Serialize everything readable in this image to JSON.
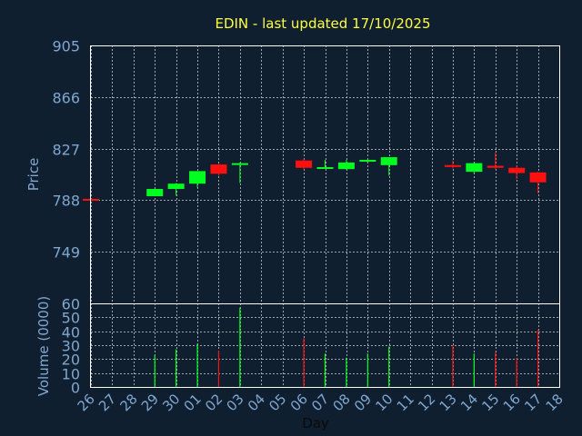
{
  "colors": {
    "background": "#0f1f30",
    "title": "#ffff40",
    "axis_text": "#7fa7d0",
    "xlabel": "#0a0a0a",
    "grid": "#c8c8c8",
    "frame": "#ffffff",
    "up": "#00ff1e",
    "down": "#ff1010"
  },
  "chart_data": {
    "type": "candlestick",
    "title": "EDIN - last updated 17/10/2025",
    "xlabel": "Day",
    "grid": true,
    "x_ticks": [
      "26",
      "27",
      "28",
      "29",
      "30",
      "01",
      "02",
      "03",
      "04",
      "05",
      "06",
      "07",
      "08",
      "09",
      "10",
      "11",
      "12",
      "13",
      "14",
      "15",
      "16",
      "17",
      "18"
    ],
    "price_panel": {
      "ylabel": "Price",
      "ylim": [
        710,
        905
      ],
      "y_ticks": [
        905,
        866,
        827,
        788,
        749
      ],
      "candles": [
        {
          "x": "26",
          "open": 789.0,
          "close": 788.0,
          "high": 789.5,
          "low": 787.5
        },
        {
          "x": "29",
          "open": 791.0,
          "close": 796.5,
          "high": 797.0,
          "low": 791.0
        },
        {
          "x": "30",
          "open": 796.5,
          "close": 800.5,
          "high": 801.0,
          "low": 791.5
        },
        {
          "x": "01",
          "open": 800.5,
          "close": 810.0,
          "high": 810.0,
          "low": 797.5
        },
        {
          "x": "02",
          "open": 815.0,
          "close": 808.0,
          "high": 815.5,
          "low": 806.5
        },
        {
          "x": "03",
          "open": 815.0,
          "close": 816.0,
          "high": 816.5,
          "low": 801.0
        },
        {
          "x": "06",
          "open": 818.0,
          "close": 812.5,
          "high": 819.0,
          "low": 811.5
        },
        {
          "x": "07",
          "open": 812.5,
          "close": 813.0,
          "high": 818.5,
          "low": 812.0
        },
        {
          "x": "08",
          "open": 811.5,
          "close": 816.5,
          "high": 818.5,
          "low": 811.0
        },
        {
          "x": "09",
          "open": 817.5,
          "close": 818.5,
          "high": 819.0,
          "low": 816.5
        },
        {
          "x": "10",
          "open": 814.5,
          "close": 820.5,
          "high": 820.5,
          "low": 806.5
        },
        {
          "x": "13",
          "open": 814.5,
          "close": 813.5,
          "high": 818.0,
          "low": 812.0
        },
        {
          "x": "14",
          "open": 809.5,
          "close": 816.0,
          "high": 816.5,
          "low": 808.0
        },
        {
          "x": "15",
          "open": 814.0,
          "close": 812.5,
          "high": 824.0,
          "low": 811.5
        },
        {
          "x": "16",
          "open": 812.5,
          "close": 808.5,
          "high": 814.5,
          "low": 804.0
        },
        {
          "x": "17",
          "open": 809.0,
          "close": 801.5,
          "high": 809.5,
          "low": 793.0
        }
      ]
    },
    "volume_panel": {
      "ylabel": "Volume (0000)",
      "ylim": [
        0,
        60
      ],
      "y_ticks": [
        0,
        10,
        20,
        30,
        40,
        50,
        60
      ],
      "bars": [
        {
          "x": "26",
          "value": 1,
          "direction": "down"
        },
        {
          "x": "29",
          "value": 23,
          "direction": "up"
        },
        {
          "x": "30",
          "value": 27,
          "direction": "up"
        },
        {
          "x": "01",
          "value": 31,
          "direction": "up"
        },
        {
          "x": "02",
          "value": 26,
          "direction": "down"
        },
        {
          "x": "03",
          "value": 57,
          "direction": "up"
        },
        {
          "x": "06",
          "value": 35,
          "direction": "down"
        },
        {
          "x": "07",
          "value": 24,
          "direction": "up"
        },
        {
          "x": "08",
          "value": 21,
          "direction": "up"
        },
        {
          "x": "09",
          "value": 24,
          "direction": "up"
        },
        {
          "x": "10",
          "value": 29,
          "direction": "up"
        },
        {
          "x": "13",
          "value": 30,
          "direction": "down"
        },
        {
          "x": "14",
          "value": 24,
          "direction": "up"
        },
        {
          "x": "15",
          "value": 25,
          "direction": "down"
        },
        {
          "x": "16",
          "value": 21,
          "direction": "down"
        },
        {
          "x": "17",
          "value": 41,
          "direction": "down"
        }
      ]
    }
  }
}
